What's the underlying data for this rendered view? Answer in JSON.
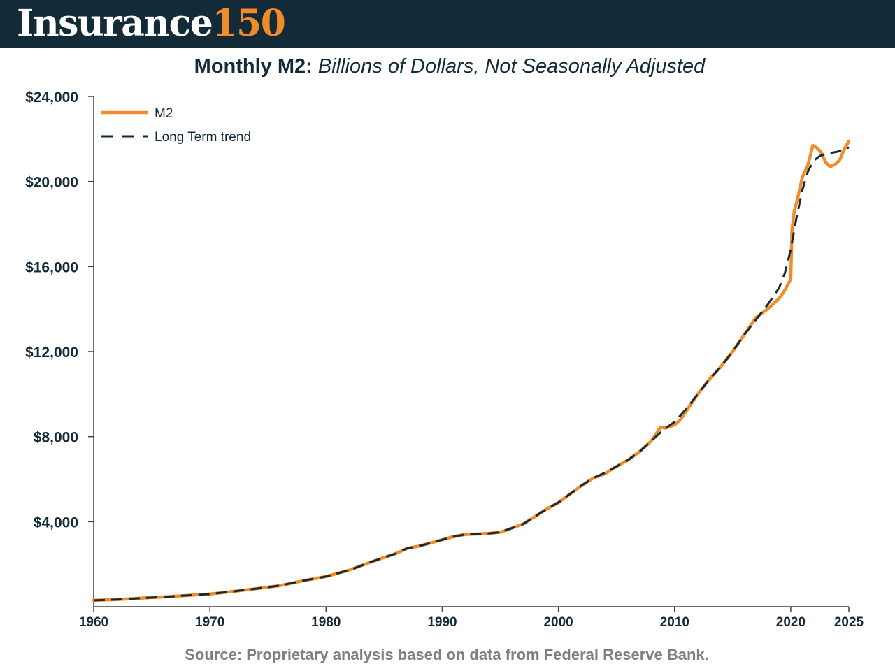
{
  "header": {
    "brand_part1": "Insurance",
    "brand_part2": "150",
    "bg_color": "#132a38",
    "accent_color": "#f28c28"
  },
  "title_bold": "Monthly M2:",
  "title_italic": "Billions of Dollars, Not Seasonally Adjusted",
  "source": "Source: Proprietary analysis based on data from Federal Reserve Bank.",
  "chart_data": {
    "type": "line",
    "xlim": [
      1960,
      2025
    ],
    "ylim": [
      0,
      24000
    ],
    "x_ticks": [
      1960,
      1970,
      1980,
      1990,
      2000,
      2010,
      2020,
      2025
    ],
    "x_tick_labels": [
      "1960",
      "1970",
      "1980",
      "1990",
      "2000",
      "2010",
      "2020",
      "2025"
    ],
    "y_ticks": [
      4000,
      8000,
      12000,
      16000,
      20000,
      24000
    ],
    "y_tick_labels": [
      "$4,000",
      "$8,000",
      "$12,000",
      "$16,000",
      "$20,000",
      "$24,000"
    ],
    "grid": false,
    "legend_position": "top-left",
    "series": [
      {
        "name": "M2",
        "color": "#f28c28",
        "style": "solid",
        "x": [
          1960,
          1962,
          1964,
          1966,
          1968,
          1970,
          1972,
          1974,
          1976,
          1978,
          1980,
          1982,
          1984,
          1986,
          1987,
          1988,
          1989,
          1990,
          1991,
          1992,
          1993,
          1994,
          1995,
          1996,
          1997,
          1998,
          1999,
          2000,
          2001,
          2002,
          2003,
          2004,
          2005,
          2006,
          2007,
          2008,
          2008.8,
          2009.2,
          2010,
          2010.5,
          2011,
          2012,
          2013,
          2014,
          2015,
          2016,
          2017,
          2018,
          2019,
          2019.5,
          2020,
          2020.1,
          2020.3,
          2020.5,
          2021,
          2021.5,
          2021.9,
          2022.2,
          2022.6,
          2023,
          2023.4,
          2023.8,
          2024.2,
          2024.6,
          2025
        ],
        "values": [
          300,
          340,
          400,
          460,
          530,
          600,
          720,
          850,
          990,
          1220,
          1420,
          1720,
          2130,
          2500,
          2750,
          2850,
          3000,
          3150,
          3300,
          3400,
          3420,
          3450,
          3500,
          3700,
          3900,
          4250,
          4600,
          4900,
          5300,
          5700,
          6050,
          6250,
          6600,
          6900,
          7300,
          7800,
          8450,
          8400,
          8550,
          8800,
          9200,
          10000,
          10700,
          11300,
          12000,
          12800,
          13600,
          14000,
          14500,
          14900,
          15400,
          17700,
          18600,
          19000,
          20200,
          20800,
          21700,
          21600,
          21400,
          20900,
          20700,
          20800,
          21000,
          21500,
          21900
        ]
      },
      {
        "name": "Long Term trend",
        "color": "#132a38",
        "style": "dashed",
        "x": [
          1960,
          1962,
          1964,
          1966,
          1968,
          1970,
          1972,
          1974,
          1976,
          1978,
          1980,
          1982,
          1984,
          1986,
          1987,
          1988,
          1989,
          1990,
          1991,
          1992,
          1993,
          1994,
          1995,
          1996,
          1997,
          1998,
          1999,
          2000,
          2001,
          2002,
          2003,
          2004,
          2005,
          2006,
          2007,
          2008,
          2009,
          2010,
          2011,
          2012,
          2013,
          2014,
          2015,
          2016,
          2017,
          2018,
          2019,
          2019.5,
          2020,
          2020.5,
          2021,
          2021.5,
          2022,
          2022.5,
          2023,
          2024,
          2025
        ],
        "values": [
          300,
          340,
          400,
          460,
          530,
          600,
          720,
          850,
          990,
          1220,
          1420,
          1720,
          2130,
          2500,
          2750,
          2850,
          3000,
          3150,
          3300,
          3400,
          3420,
          3450,
          3500,
          3700,
          3900,
          4250,
          4600,
          4900,
          5300,
          5700,
          6050,
          6300,
          6600,
          6900,
          7300,
          7800,
          8300,
          8700,
          9300,
          10000,
          10700,
          11300,
          12000,
          12800,
          13500,
          14200,
          15000,
          15700,
          16800,
          18300,
          19600,
          20500,
          21000,
          21200,
          21300,
          21400,
          21600
        ]
      }
    ]
  }
}
